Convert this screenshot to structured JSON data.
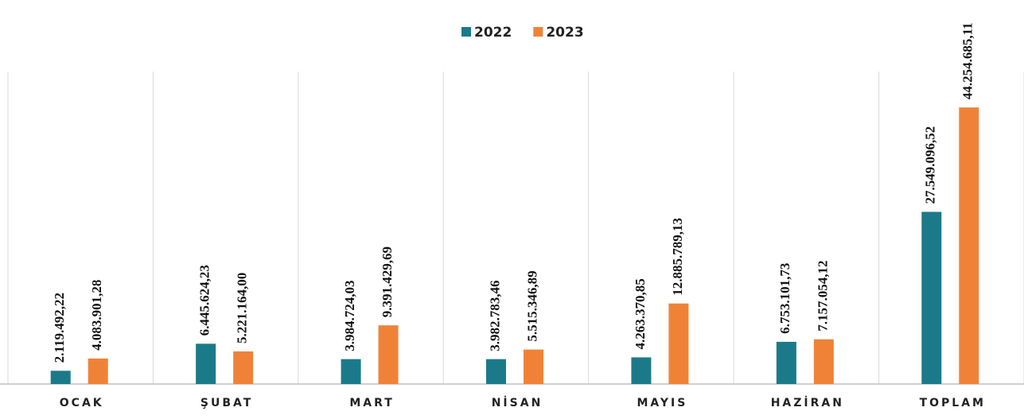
{
  "chart_data": {
    "type": "bar",
    "categories": [
      "OCAK",
      "ŞUBAT",
      "MART",
      "NİSAN",
      "MAYIS",
      "HAZİRAN",
      "TOPLAM"
    ],
    "series": [
      {
        "name": "2022",
        "color": "#1b7a89",
        "values": [
          2119492.22,
          6445624.23,
          3984724.03,
          3982783.46,
          4263370.85,
          6753101.73,
          27549096.52
        ],
        "value_labels": [
          "2.119.492,22",
          "6.445.624,23",
          "3.984.724,03",
          "3.982.783,46",
          "4.263.370,85",
          "6.753.101,73",
          "27.549.096,52"
        ]
      },
      {
        "name": "2023",
        "color": "#f08238",
        "values": [
          4083901.28,
          5221164.0,
          9391429.69,
          5515346.89,
          12885789.13,
          7157054.12,
          44254685.11
        ],
        "value_labels": [
          "4.083.901,28",
          "5.221.164,00",
          "9.391.429,69",
          "5.515.346,89",
          "12.885.789,13",
          "7.157.054,12",
          "44.254.685,11"
        ]
      }
    ],
    "ylim": [
      0,
      50000000
    ],
    "legend": "top"
  }
}
